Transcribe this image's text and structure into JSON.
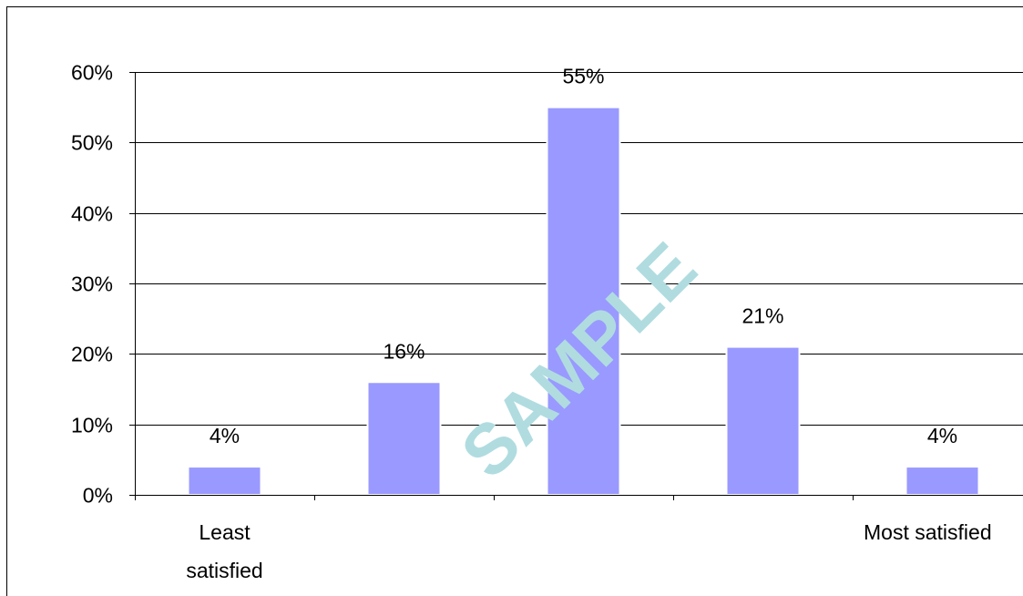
{
  "chart_data": {
    "type": "bar",
    "categories": [
      "Least satisfied",
      "",
      "",
      "",
      "Most satisfied"
    ],
    "values": [
      4,
      16,
      55,
      21,
      4
    ],
    "data_labels": [
      "4%",
      "16%",
      "55%",
      "21%",
      "4%"
    ],
    "ylim": [
      0,
      60
    ],
    "yticks": [
      0,
      10,
      20,
      30,
      40,
      50,
      60
    ],
    "ytick_labels": [
      "0%",
      "10%",
      "20%",
      "30%",
      "40%",
      "50%",
      "60%"
    ],
    "title": "",
    "xlabel": "",
    "ylabel": "",
    "grid": true,
    "bar_color": "#9999ff",
    "bar_edge_color": "#ffffff",
    "watermark": "SAMPLE",
    "watermark_color": "#b0dce0"
  }
}
